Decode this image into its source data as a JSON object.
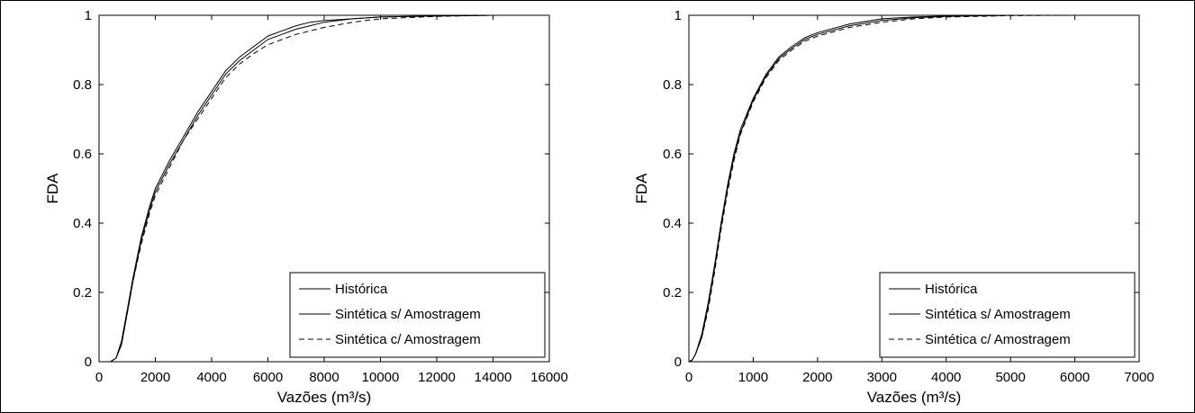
{
  "chart_data": [
    {
      "type": "line",
      "title": "",
      "xlabel": "Vazões (m³/s)",
      "ylabel": "FDA",
      "xlim": [
        0,
        16000
      ],
      "ylim": [
        0,
        1
      ],
      "xticks": [
        "0",
        "2000",
        "4000",
        "6000",
        "8000",
        "10000",
        "12000",
        "14000",
        "16000"
      ],
      "yticks": [
        "0",
        "0.2",
        "0.4",
        "0.6",
        "0.8",
        "1"
      ],
      "legend_position": "bottom-right",
      "series": [
        {
          "name": "Histórica",
          "style": "solid",
          "x": [
            0,
            400,
            600,
            800,
            1000,
            1200,
            1500,
            1800,
            2000,
            2500,
            3000,
            3500,
            4000,
            4500,
            5000,
            5500,
            6000,
            6500,
            7000,
            7500,
            8000,
            9000,
            10000,
            12000,
            14000,
            16000
          ],
          "y": [
            0,
            0,
            0.01,
            0.06,
            0.15,
            0.24,
            0.36,
            0.45,
            0.5,
            0.58,
            0.65,
            0.72,
            0.78,
            0.84,
            0.88,
            0.91,
            0.94,
            0.955,
            0.97,
            0.98,
            0.985,
            0.99,
            0.995,
            0.998,
            1,
            1
          ]
        },
        {
          "name": "Sintética s/ Amostragem",
          "style": "solid",
          "x": [
            0,
            400,
            600,
            800,
            1000,
            1200,
            1500,
            1800,
            2000,
            2500,
            3000,
            3500,
            4000,
            4500,
            5000,
            5500,
            6000,
            6500,
            7000,
            7500,
            8000,
            9000,
            10000,
            12000,
            14000,
            16000
          ],
          "y": [
            0,
            0,
            0.01,
            0.05,
            0.14,
            0.23,
            0.35,
            0.44,
            0.49,
            0.57,
            0.64,
            0.71,
            0.77,
            0.83,
            0.87,
            0.9,
            0.93,
            0.945,
            0.96,
            0.97,
            0.98,
            0.99,
            0.995,
            0.998,
            1,
            1
          ]
        },
        {
          "name": "Sintética c/ Amostragem",
          "style": "dashed",
          "x": [
            0,
            400,
            600,
            800,
            1000,
            1200,
            1500,
            1800,
            2000,
            2500,
            3000,
            3500,
            4000,
            4500,
            5000,
            5500,
            6000,
            6500,
            7000,
            7500,
            8000,
            9000,
            10000,
            12000,
            14000,
            16000
          ],
          "y": [
            0,
            0,
            0.01,
            0.05,
            0.14,
            0.23,
            0.34,
            0.43,
            0.48,
            0.56,
            0.64,
            0.7,
            0.76,
            0.82,
            0.86,
            0.89,
            0.915,
            0.93,
            0.945,
            0.955,
            0.965,
            0.98,
            0.99,
            0.997,
            1,
            1
          ]
        }
      ]
    },
    {
      "type": "line",
      "title": "",
      "xlabel": "Vazões (m³/s)",
      "ylabel": "FDA",
      "xlim": [
        0,
        7000
      ],
      "ylim": [
        0,
        1
      ],
      "xticks": [
        "0",
        "1000",
        "2000",
        "3000",
        "4000",
        "5000",
        "6000",
        "7000"
      ],
      "yticks": [
        "0",
        "0.2",
        "0.4",
        "0.6",
        "0.8",
        "1"
      ],
      "legend_position": "bottom-right",
      "series": [
        {
          "name": "Histórica",
          "style": "solid",
          "x": [
            0,
            50,
            100,
            200,
            300,
            400,
            500,
            600,
            700,
            800,
            1000,
            1200,
            1400,
            1600,
            1800,
            2000,
            2500,
            3000,
            3500,
            4000,
            5000,
            6000,
            7000
          ],
          "y": [
            0,
            0.005,
            0.02,
            0.08,
            0.17,
            0.28,
            0.4,
            0.51,
            0.6,
            0.67,
            0.76,
            0.83,
            0.88,
            0.91,
            0.935,
            0.95,
            0.975,
            0.99,
            0.995,
            0.998,
            1,
            1,
            1
          ]
        },
        {
          "name": "Sintética s/ Amostragem",
          "style": "solid",
          "x": [
            0,
            50,
            100,
            200,
            300,
            400,
            500,
            600,
            700,
            800,
            1000,
            1200,
            1400,
            1600,
            1800,
            2000,
            2500,
            3000,
            3500,
            4000,
            5000,
            6000,
            7000
          ],
          "y": [
            0,
            0.005,
            0.02,
            0.07,
            0.16,
            0.27,
            0.39,
            0.5,
            0.59,
            0.66,
            0.755,
            0.825,
            0.875,
            0.905,
            0.93,
            0.945,
            0.97,
            0.985,
            0.993,
            0.997,
            1,
            1,
            1
          ]
        },
        {
          "name": "Sintética c/ Amostragem",
          "style": "dashed",
          "x": [
            0,
            50,
            100,
            200,
            300,
            400,
            500,
            600,
            700,
            800,
            1000,
            1200,
            1400,
            1600,
            1800,
            2000,
            2500,
            3000,
            3500,
            4000,
            5000,
            6000,
            7000
          ],
          "y": [
            0,
            0.005,
            0.02,
            0.07,
            0.15,
            0.26,
            0.38,
            0.49,
            0.58,
            0.655,
            0.75,
            0.82,
            0.87,
            0.9,
            0.925,
            0.94,
            0.965,
            0.98,
            0.99,
            0.995,
            0.999,
            1,
            1
          ]
        }
      ]
    }
  ]
}
